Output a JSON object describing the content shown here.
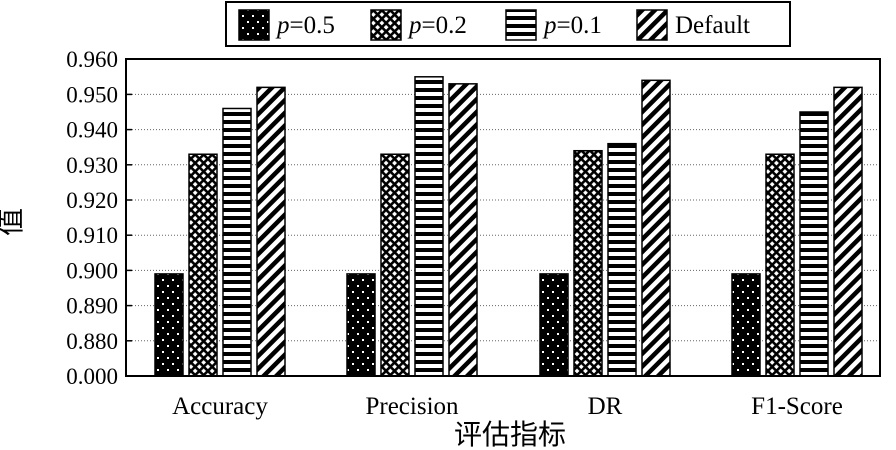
{
  "chart_data": {
    "type": "bar",
    "categories": [
      "Accuracy",
      "Precision",
      "DR",
      "F1-Score"
    ],
    "series": [
      {
        "name_prefix": "p",
        "name_suffix": "=0.5",
        "pattern": "dots",
        "values": [
          0.899,
          0.899,
          0.899,
          0.899
        ]
      },
      {
        "name_prefix": "p",
        "name_suffix": "=0.2",
        "pattern": "crosshatch",
        "values": [
          0.933,
          0.933,
          0.934,
          0.933
        ]
      },
      {
        "name_prefix": "p",
        "name_suffix": "=0.1",
        "pattern": "horizontal",
        "values": [
          0.946,
          0.955,
          0.936,
          0.945
        ]
      },
      {
        "name_prefix": "",
        "name_suffix": "Default",
        "pattern": "diagonal",
        "values": [
          0.952,
          0.953,
          0.954,
          0.952
        ]
      }
    ],
    "yticks": [
      "0.000",
      "0.880",
      "0.890",
      "0.900",
      "0.910",
      "0.920",
      "0.930",
      "0.940",
      "0.950",
      "0.960"
    ],
    "y_axis_break": "0.000 to 0.880",
    "ylim": [
      0.87,
      0.96
    ],
    "xlabel": "评估指标",
    "ylabel": "值",
    "grid": "horizontal dotted",
    "legend_position": "top-center"
  }
}
